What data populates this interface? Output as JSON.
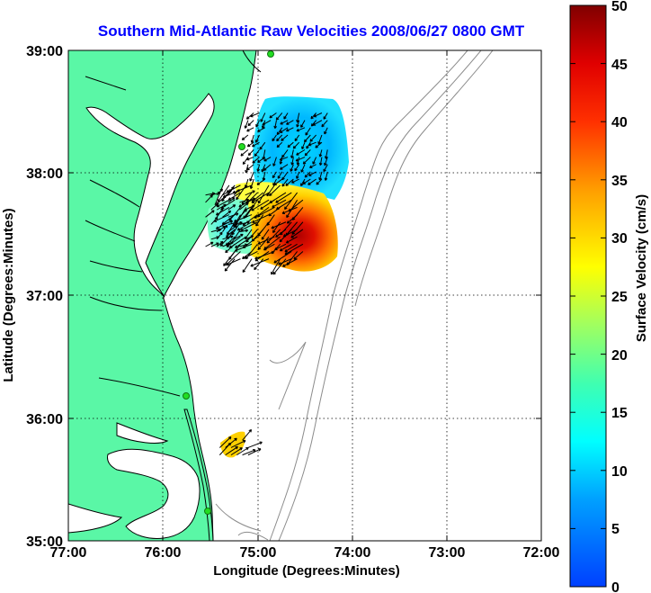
{
  "title": "Southern Mid-Atlantic Raw Velocities 2008/06/27 0800 GMT",
  "x_axis": {
    "label": "Longitude (Degrees:Minutes)",
    "ticks": [
      "77:00",
      "76:00",
      "75:00",
      "74:00",
      "73:00",
      "72:00"
    ]
  },
  "y_axis": {
    "label": "Latitude (Degrees:Minutes)",
    "ticks": [
      "39:00",
      "38:00",
      "37:00",
      "36:00",
      "35:00"
    ]
  },
  "colorbar": {
    "label": "Surface Velocity (cm/s)",
    "ticks": [
      "50",
      "45",
      "40",
      "35",
      "30",
      "25",
      "20",
      "15",
      "10",
      "5",
      "0"
    ],
    "range": [
      0,
      50
    ],
    "colormap": "jet"
  },
  "map": {
    "extent": {
      "lon": [
        -77,
        -72
      ],
      "lat": [
        35,
        39
      ]
    },
    "grid": true,
    "land_color": "#5af7a6",
    "water_color": "#ffffff",
    "coastline_color": "#000000",
    "bathymetry_color": "#8c8c8c",
    "radar_site_color": "#22dd22"
  },
  "chart_data": {
    "type": "vector_field",
    "units": "cm/s",
    "regions": [
      {
        "name_ref": "northern patch",
        "lon_range": [
          -75.1,
          -74.2
        ],
        "lat_range": [
          37.95,
          38.55
        ],
        "speed_range": [
          5,
          15
        ],
        "direction_deg_range": [
          190,
          250
        ]
      },
      {
        "name_ref": "southern patch",
        "lon_range": [
          -75.3,
          -74.5
        ],
        "lat_range": [
          37.3,
          37.95
        ],
        "speed_range": [
          20,
          50
        ],
        "direction_deg_range": [
          210,
          250
        ]
      },
      {
        "name_ref": "western patch",
        "lon_range": [
          -75.55,
          -75.1
        ],
        "lat_range": [
          37.4,
          37.85
        ],
        "speed_range": [
          8,
          18
        ],
        "direction_deg_range": [
          30,
          80
        ]
      },
      {
        "name_ref": "hatteras patch",
        "lon_range": [
          -75.4,
          -75.1
        ],
        "lat_range": [
          35.7,
          35.85
        ],
        "speed_range": [
          25,
          35
        ],
        "direction_deg_range": [
          40,
          70
        ]
      }
    ]
  }
}
